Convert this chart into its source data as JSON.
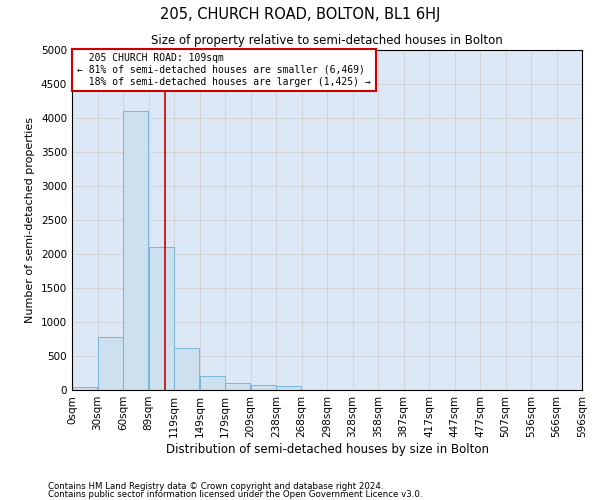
{
  "title": "205, CHURCH ROAD, BOLTON, BL1 6HJ",
  "subtitle": "Size of property relative to semi-detached houses in Bolton",
  "xlabel": "Distribution of semi-detached houses by size in Bolton",
  "ylabel": "Number of semi-detached properties",
  "bin_labels": [
    "0sqm",
    "30sqm",
    "60sqm",
    "89sqm",
    "119sqm",
    "149sqm",
    "179sqm",
    "209sqm",
    "238sqm",
    "268sqm",
    "298sqm",
    "328sqm",
    "358sqm",
    "387sqm",
    "417sqm",
    "447sqm",
    "477sqm",
    "507sqm",
    "536sqm",
    "566sqm",
    "596sqm"
  ],
  "bar_heights": [
    50,
    780,
    4100,
    2100,
    620,
    200,
    110,
    80,
    55,
    0,
    0,
    0,
    0,
    0,
    0,
    0,
    0,
    0,
    0,
    0
  ],
  "bar_color": "#cce0f0",
  "bar_edgecolor": "#6baed6",
  "property_size": 109,
  "property_label": "205 CHURCH ROAD: 109sqm",
  "pct_smaller": 81,
  "n_smaller": 6469,
  "pct_larger": 18,
  "n_larger": 1425,
  "vline_color": "#cc0000",
  "annotation_box_color": "#cc0000",
  "ylim": [
    0,
    5000
  ],
  "yticks": [
    0,
    500,
    1000,
    1500,
    2000,
    2500,
    3000,
    3500,
    4000,
    4500,
    5000
  ],
  "grid_color": "#cccccc",
  "bg_color": "#dce8f5",
  "footnote1": "Contains HM Land Registry data © Crown copyright and database right 2024.",
  "footnote2": "Contains public sector information licensed under the Open Government Licence v3.0.",
  "bin_width": 30,
  "n_bins": 20
}
